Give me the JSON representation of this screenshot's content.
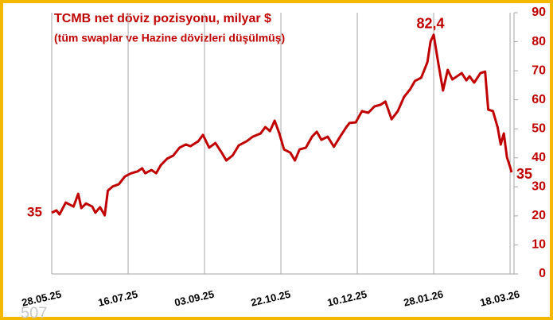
{
  "chart_data": {
    "type": "line",
    "title": "TCMB net döviz pozisyonu, milyar $",
    "subtitle": "(tüm swaplar ve Hazine dövizleri düşülmüş)",
    "annotation": "35",
    "watermark": "507",
    "x": [
      "2025-05-28",
      "2025-05-31",
      "2025-06-02",
      "2025-06-06",
      "2025-06-11",
      "2025-06-14",
      "2025-06-16",
      "2025-06-19",
      "2025-06-23",
      "2025-06-25",
      "2025-06-28",
      "2025-07-01",
      "2025-07-03",
      "2025-07-06",
      "2025-07-10",
      "2025-07-14",
      "2025-07-18",
      "2025-07-22",
      "2025-07-25",
      "2025-07-27",
      "2025-07-31",
      "2025-08-03",
      "2025-08-06",
      "2025-08-10",
      "2025-08-14",
      "2025-08-18",
      "2025-08-22",
      "2025-08-25",
      "2025-08-30",
      "2025-09-02",
      "2025-09-06",
      "2025-09-10",
      "2025-09-14",
      "2025-09-17",
      "2025-09-21",
      "2025-09-25",
      "2025-09-30",
      "2025-10-04",
      "2025-10-09",
      "2025-10-12",
      "2025-10-15",
      "2025-10-18",
      "2025-10-21",
      "2025-10-24",
      "2025-10-28",
      "2025-10-31",
      "2025-11-03",
      "2025-11-07",
      "2025-11-11",
      "2025-11-14",
      "2025-11-17",
      "2025-11-21",
      "2025-11-25",
      "2025-11-29",
      "2025-12-03",
      "2025-12-05",
      "2025-12-09",
      "2025-12-13",
      "2025-12-17",
      "2025-12-21",
      "2025-12-25",
      "2025-12-28",
      "2026-01-01",
      "2026-01-05",
      "2026-01-09",
      "2026-01-13",
      "2026-01-16",
      "2026-01-20",
      "2026-01-24",
      "2026-01-26",
      "2026-01-28",
      "2026-01-31",
      "2026-02-03",
      "2026-02-06",
      "2026-02-09",
      "2026-02-12",
      "2026-02-15",
      "2026-02-18",
      "2026-02-20",
      "2026-02-23",
      "2026-02-27",
      "2026-03-02",
      "2026-03-04",
      "2026-03-07",
      "2026-03-10",
      "2026-03-12",
      "2026-03-14",
      "2026-03-16",
      "2026-03-18",
      "2026-03-19"
    ],
    "series": [
      {
        "color": "#c00000",
        "values": [
          21.1,
          21.9,
          20.5,
          24.6,
          23.2,
          27.6,
          22.7,
          24.3,
          23.2,
          21.1,
          23.0,
          20.2,
          28.7,
          30.1,
          30.9,
          33.6,
          34.7,
          35.3,
          36.4,
          34.7,
          35.8,
          34.7,
          37.5,
          39.7,
          40.8,
          43.5,
          44.6,
          44.0,
          45.7,
          47.9,
          43.5,
          45.1,
          41.8,
          39.1,
          40.8,
          44.3,
          45.7,
          47.3,
          48.4,
          50.6,
          49.2,
          52.8,
          48.4,
          42.9,
          41.8,
          39.1,
          42.9,
          43.5,
          47.3,
          49.0,
          46.2,
          47.3,
          43.8,
          47.3,
          50.6,
          52.0,
          52.2,
          56.1,
          55.5,
          57.7,
          58.3,
          59.4,
          53.3,
          56.1,
          61.0,
          63.7,
          66.5,
          67.6,
          73.0,
          80.1,
          82.4,
          72.5,
          63.2,
          70.3,
          67.0,
          68.1,
          69.2,
          66.7,
          68.1,
          65.9,
          69.2,
          69.7,
          56.6,
          56.1,
          50.6,
          44.6,
          48.4,
          40.2,
          36.9,
          35
        ],
        "value_labels": [
          null,
          null,
          null,
          null,
          null,
          null,
          null,
          null,
          null,
          null,
          null,
          null,
          null,
          null,
          null,
          null,
          null,
          null,
          null,
          null,
          null,
          null,
          null,
          null,
          null,
          null,
          null,
          null,
          null,
          null,
          null,
          null,
          null,
          null,
          null,
          null,
          null,
          null,
          null,
          null,
          null,
          null,
          null,
          null,
          null,
          null,
          null,
          null,
          null,
          null,
          null,
          null,
          null,
          null,
          null,
          null,
          null,
          null,
          null,
          null,
          null,
          null,
          null,
          null,
          null,
          null,
          null,
          null,
          null,
          null,
          "82,4",
          null,
          null,
          null,
          null,
          null,
          null,
          null,
          null,
          null,
          null,
          null,
          null,
          null,
          null,
          null,
          null,
          null,
          null,
          "35"
        ]
      }
    ],
    "xlim": [
      "2025-05-28",
      "2026-03-19"
    ],
    "xticks": [
      {
        "value": "2025-05-28",
        "label": "28.05.25"
      },
      {
        "value": "2025-07-16",
        "label": "16.07.25"
      },
      {
        "value": "2025-09-03",
        "label": "03.09.25"
      },
      {
        "value": "2025-10-22",
        "label": "22.10.25"
      },
      {
        "value": "2025-12-10",
        "label": "10.12.25"
      },
      {
        "value": "2026-01-28",
        "label": "28.01.26"
      },
      {
        "value": "2026-03-18",
        "label": "18.03.26"
      }
    ],
    "ylim": [
      0,
      90
    ],
    "yticks": [
      0,
      10,
      20,
      30,
      40,
      50,
      60,
      70,
      80,
      90
    ],
    "grid": "x"
  }
}
